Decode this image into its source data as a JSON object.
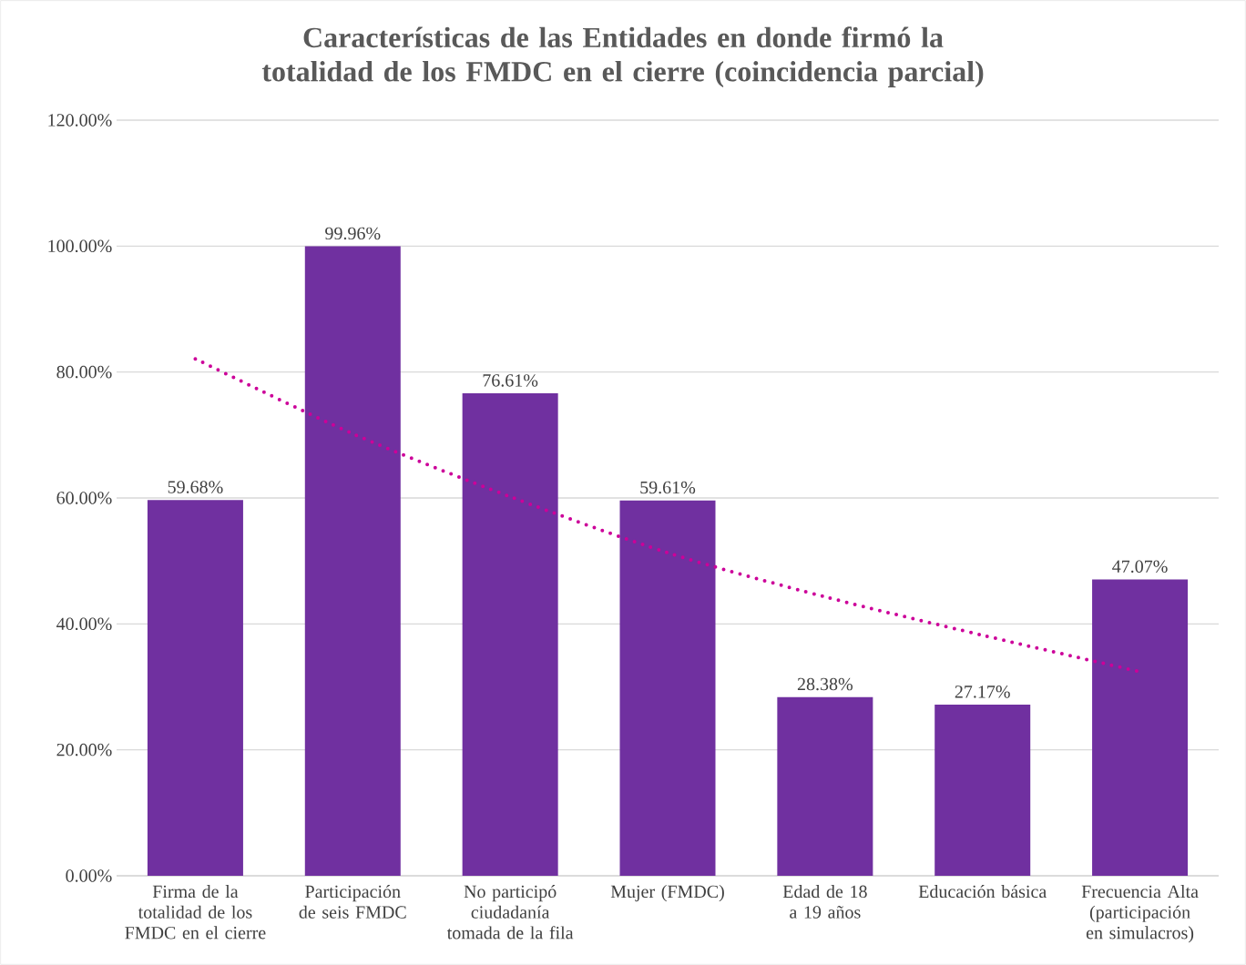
{
  "chart_data": {
    "type": "bar",
    "title": "Características de las Entidades en donde firmó la totalidad de los FMDC en el cierre (coincidencia parcial)",
    "categories": [
      "Firma de la totalidad de los FMDC en el cierre",
      "Participación de seis FMDC",
      "No participó ciudadanía tomada de la fila",
      "Mujer (FMDC)",
      "Edad de 18 a 19 años",
      "Educación básica",
      "Frecuencia Alta (participación en simulacros)"
    ],
    "series": [
      {
        "color": "#7030a0",
        "values": [
          59.68,
          99.96,
          76.61,
          59.61,
          28.38,
          27.17,
          47.07
        ],
        "value_labels": [
          "59.68%",
          "99.96%",
          "76.61%",
          "59.61%",
          "28.38%",
          "27.17%",
          "47.07%"
        ]
      },
      {
        "type": "line",
        "color": "#cc0099",
        "line_style": "dotted",
        "values": [
          82.1,
          70.2,
          60.2,
          51.3,
          44.3,
          38.2,
          32.4
        ]
      }
    ],
    "ylim": [
      0,
      120
    ],
    "yticks": [
      {
        "value": 0,
        "label": "0.00%"
      },
      {
        "value": 20,
        "label": "20.00%"
      },
      {
        "value": 40,
        "label": "40.00%"
      },
      {
        "value": 60,
        "label": "60.00%"
      },
      {
        "value": 80,
        "label": "80.00%"
      },
      {
        "value": 100,
        "label": "100.00%"
      },
      {
        "value": 120,
        "label": "120.00%"
      }
    ],
    "grid": "y"
  }
}
